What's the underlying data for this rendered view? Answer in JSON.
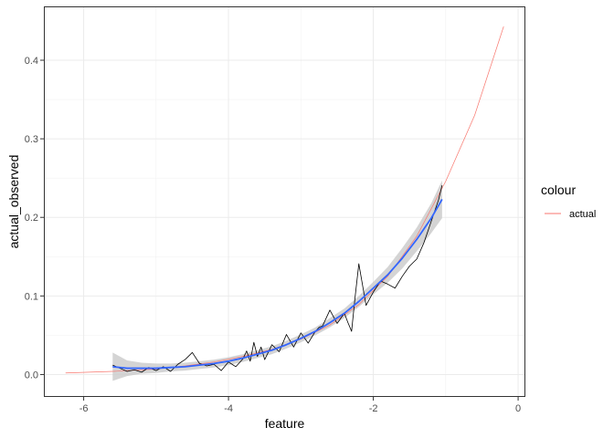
{
  "chart_data": {
    "type": "line",
    "xlabel": "feature",
    "ylabel": "actual_observed",
    "xlim": [
      -6.55,
      0.1
    ],
    "ylim": [
      -0.0285,
      0.4685
    ],
    "xticks": [
      -6,
      -4,
      -2,
      0
    ],
    "xtick_labels": [
      "-6",
      "-4",
      "-2",
      "0"
    ],
    "yticks": [
      0.0,
      0.1,
      0.2,
      0.3,
      0.4
    ],
    "ytick_labels": [
      "0.0",
      "0.1",
      "0.2",
      "0.3",
      "0.4"
    ],
    "grid": true,
    "legend": {
      "title": "colour",
      "position": "right",
      "entries": [
        {
          "label": "actual",
          "color": "#f8766d"
        }
      ]
    },
    "series": [
      {
        "name": "actual",
        "color": "#f8766d",
        "x": [
          -6.25,
          -5.6,
          -5.0,
          -4.6,
          -4.2,
          -3.8,
          -3.4,
          -3.0,
          -2.6,
          -2.2,
          -1.8,
          -1.4,
          -1.0,
          -0.6,
          -0.2
        ],
        "y": [
          0.002,
          0.004,
          0.007,
          0.011,
          0.016,
          0.023,
          0.032,
          0.045,
          0.063,
          0.089,
          0.125,
          0.176,
          0.246,
          0.33,
          0.443
        ]
      },
      {
        "color": "#000000",
        "x": [
          -5.6,
          -5.5,
          -5.4,
          -5.3,
          -5.2,
          -5.1,
          -5.0,
          -4.9,
          -4.8,
          -4.7,
          -4.6,
          -4.5,
          -4.4,
          -4.3,
          -4.2,
          -4.1,
          -4.0,
          -3.9,
          -3.8,
          -3.75,
          -3.7,
          -3.65,
          -3.6,
          -3.55,
          -3.5,
          -3.4,
          -3.3,
          -3.2,
          -3.1,
          -3.0,
          -2.9,
          -2.8,
          -2.75,
          -2.7,
          -2.6,
          -2.5,
          -2.4,
          -2.35,
          -2.3,
          -2.25,
          -2.2,
          -2.1,
          -2.0,
          -1.9,
          -1.8,
          -1.7,
          -1.6,
          -1.5,
          -1.4,
          -1.3,
          -1.2,
          -1.1,
          -1.05
        ],
        "y": [
          0.012,
          0.008,
          0.004,
          0.006,
          0.003,
          0.009,
          0.005,
          0.01,
          0.004,
          0.013,
          0.019,
          0.028,
          0.014,
          0.011,
          0.013,
          0.005,
          0.016,
          0.01,
          0.02,
          0.03,
          0.017,
          0.041,
          0.023,
          0.035,
          0.019,
          0.038,
          0.029,
          0.051,
          0.035,
          0.053,
          0.04,
          0.055,
          0.06,
          0.062,
          0.082,
          0.065,
          0.078,
          0.066,
          0.055,
          0.1,
          0.141,
          0.088,
          0.105,
          0.119,
          0.115,
          0.11,
          0.125,
          0.138,
          0.147,
          0.168,
          0.195,
          0.222,
          0.241
        ]
      },
      {
        "color": "#3366ff",
        "x": [
          -5.6,
          -5.4,
          -5.2,
          -5.0,
          -4.8,
          -4.6,
          -4.4,
          -4.2,
          -4.0,
          -3.8,
          -3.6,
          -3.4,
          -3.2,
          -3.0,
          -2.8,
          -2.6,
          -2.4,
          -2.2,
          -2.0,
          -1.8,
          -1.6,
          -1.4,
          -1.2,
          -1.05
        ],
        "y": [
          0.01,
          0.008,
          0.008,
          0.008,
          0.009,
          0.01,
          0.012,
          0.014,
          0.017,
          0.021,
          0.026,
          0.031,
          0.038,
          0.046,
          0.055,
          0.066,
          0.078,
          0.093,
          0.11,
          0.127,
          0.148,
          0.172,
          0.199,
          0.223
        ]
      }
    ],
    "confidence_band": {
      "color": "#cccccc",
      "x": [
        -5.6,
        -5.4,
        -5.2,
        -5.0,
        -4.8,
        -4.6,
        -4.4,
        -4.2,
        -4.0,
        -3.8,
        -3.6,
        -3.4,
        -3.2,
        -3.0,
        -2.8,
        -2.6,
        -2.4,
        -2.2,
        -2.0,
        -1.8,
        -1.6,
        -1.4,
        -1.2,
        -1.05
      ],
      "lower": [
        -0.008,
        -0.002,
        0.001,
        0.002,
        0.004,
        0.005,
        0.007,
        0.009,
        0.012,
        0.016,
        0.021,
        0.026,
        0.033,
        0.041,
        0.05,
        0.06,
        0.072,
        0.086,
        0.102,
        0.117,
        0.135,
        0.157,
        0.18,
        0.199
      ],
      "upper": [
        0.028,
        0.018,
        0.015,
        0.014,
        0.014,
        0.015,
        0.017,
        0.019,
        0.022,
        0.026,
        0.031,
        0.036,
        0.043,
        0.051,
        0.06,
        0.072,
        0.084,
        0.1,
        0.118,
        0.137,
        0.161,
        0.187,
        0.218,
        0.247
      ]
    }
  }
}
